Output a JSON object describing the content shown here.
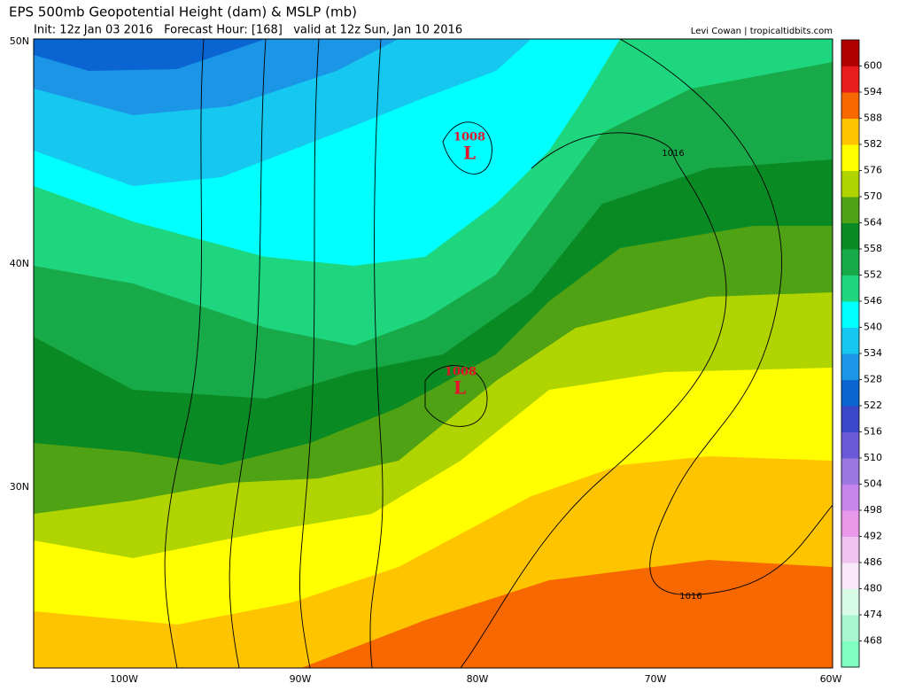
{
  "header": {
    "title": "EPS 500mb Geopotential Height (dam) & MSLP (mb)",
    "subtitle": "Init: 12z Jan 03 2016   Forecast Hour: [168]   valid at 12z Sun, Jan 10 2016",
    "credit": "Levi Cowan | tropicaltidbits.com"
  },
  "map": {
    "lat_labels": [
      "50N",
      "40N",
      "30N"
    ],
    "lon_labels": [
      "100W",
      "90W",
      "80W",
      "70W",
      "60W"
    ],
    "lows": [
      {
        "pressure": "1008",
        "symbol": "L"
      },
      {
        "pressure": "1008",
        "symbol": "L"
      }
    ],
    "isobar_labels": [
      "1016",
      "1016"
    ]
  },
  "colorbar": {
    "ticks": [
      468,
      474,
      480,
      486,
      492,
      498,
      504,
      510,
      516,
      522,
      528,
      534,
      540,
      546,
      552,
      558,
      564,
      570,
      576,
      582,
      588,
      594,
      600
    ],
    "colors": [
      "#7fffc0",
      "#a8f5d0",
      "#d8fbe8",
      "#f8e8f8",
      "#f0c4f0",
      "#e898e8",
      "#c585ea",
      "#9a78e0",
      "#6a5ad8",
      "#3c46c8",
      "#0a64d2",
      "#1b96e6",
      "#16c8ef",
      "#00ffff",
      "#1ed67e",
      "#18aa48",
      "#0a8a22",
      "#4ea214",
      "#b0d400",
      "#ffff00",
      "#ffc400",
      "#f86800",
      "#e81c1c",
      "#b00000"
    ]
  }
}
